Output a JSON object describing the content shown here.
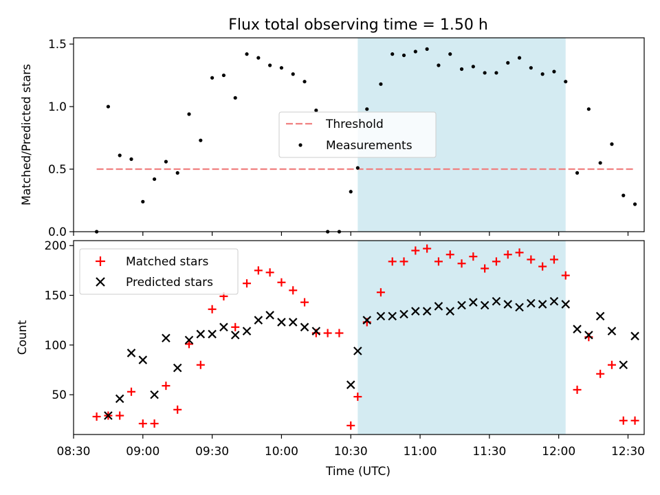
{
  "chart_data": [
    {
      "type": "scatter",
      "title": "Flux total observing time = 1.50 h",
      "ylabel": "Matched/Predicted stars",
      "ylim": [
        0,
        1.55
      ],
      "yticks": [
        0.0,
        0.5,
        1.0,
        1.5
      ],
      "ytick_labels": [
        "0.0",
        "0.5",
        "1.0",
        "1.5"
      ],
      "threshold_value": 0.5,
      "threshold_x_range": [
        "08:40",
        "12:33"
      ],
      "highlight_x_range": [
        "10:33",
        "12:03"
      ],
      "highlight_color": "#d4ebf2",
      "legend_placement": "center",
      "legend": [
        {
          "label": "Threshold",
          "marker": "dashed-line",
          "color": "#f08080"
        },
        {
          "label": "Measurements",
          "marker": "dot",
          "color": "#000000"
        }
      ],
      "series": [
        {
          "name": "Measurements",
          "color": "#000000",
          "x": [
            "08:40",
            "08:45",
            "08:50",
            "08:55",
            "09:00",
            "09:05",
            "09:10",
            "09:15",
            "09:20",
            "09:25",
            "09:30",
            "09:35",
            "09:40",
            "09:45",
            "09:50",
            "09:55",
            "10:00",
            "10:05",
            "10:10",
            "10:15",
            "10:20",
            "10:25",
            "10:30",
            "10:33",
            "10:37",
            "10:43",
            "10:48",
            "10:53",
            "10:58",
            "11:03",
            "11:08",
            "11:13",
            "11:18",
            "11:23",
            "11:28",
            "11:33",
            "11:38",
            "11:43",
            "11:48",
            "11:53",
            "11:58",
            "12:03",
            "12:08",
            "12:13",
            "12:18",
            "12:23",
            "12:28",
            "12:33"
          ],
          "values": [
            0.0,
            1.0,
            0.61,
            0.58,
            0.24,
            0.42,
            0.56,
            0.47,
            0.94,
            0.73,
            1.23,
            1.25,
            1.07,
            1.42,
            1.39,
            1.33,
            1.31,
            1.26,
            1.2,
            0.97,
            0.0,
            0.0,
            0.32,
            0.51,
            0.98,
            1.18,
            1.42,
            1.41,
            1.44,
            1.46,
            1.33,
            1.42,
            1.3,
            1.32,
            1.27,
            1.27,
            1.35,
            1.39,
            1.31,
            1.26,
            1.28,
            1.2,
            0.47,
            0.98,
            0.55,
            0.7,
            0.29,
            0.22
          ]
        }
      ]
    },
    {
      "type": "scatter",
      "xlabel": "Time (UTC)",
      "ylabel": "Count",
      "ylim": [
        10,
        205
      ],
      "yticks": [
        50,
        100,
        150,
        200
      ],
      "ytick_labels": [
        "50",
        "100",
        "150",
        "200"
      ],
      "xticks": [
        "08:30",
        "09:00",
        "09:30",
        "10:00",
        "10:30",
        "11:00",
        "11:30",
        "12:00",
        "12:30"
      ],
      "xlim": [
        "08:30",
        "12:37"
      ],
      "highlight_x_range": [
        "10:33",
        "12:03"
      ],
      "legend_placement": "upper left",
      "legend": [
        {
          "label": "Matched stars",
          "marker": "plus",
          "color": "#ff0000"
        },
        {
          "label": "Predicted stars",
          "marker": "x",
          "color": "#000000"
        }
      ],
      "series": [
        {
          "name": "Matched stars",
          "marker": "plus",
          "color": "#ff0000",
          "x": [
            "08:40",
            "08:45",
            "08:50",
            "08:55",
            "09:00",
            "09:05",
            "09:10",
            "09:15",
            "09:20",
            "09:25",
            "09:30",
            "09:35",
            "09:40",
            "09:45",
            "09:50",
            "09:55",
            "10:00",
            "10:05",
            "10:10",
            "10:15",
            "10:20",
            "10:25",
            "10:30",
            "10:33",
            "10:37",
            "10:43",
            "10:48",
            "10:53",
            "10:58",
            "11:03",
            "11:08",
            "11:13",
            "11:18",
            "11:23",
            "11:28",
            "11:33",
            "11:38",
            "11:43",
            "11:48",
            "11:53",
            "11:58",
            "12:03",
            "12:08",
            "12:13",
            "12:18",
            "12:23",
            "12:28",
            "12:33"
          ],
          "values": [
            28,
            29,
            29,
            53,
            21,
            21,
            59,
            35,
            101,
            80,
            136,
            149,
            118,
            162,
            175,
            173,
            163,
            155,
            143,
            112,
            112,
            112,
            19,
            48,
            123,
            153,
            184,
            184,
            195,
            197,
            184,
            191,
            182,
            189,
            177,
            184,
            191,
            193,
            186,
            179,
            186,
            170,
            55,
            108,
            71,
            80,
            24,
            24
          ]
        },
        {
          "name": "Predicted stars",
          "marker": "x",
          "color": "#000000",
          "x": [
            "08:45",
            "08:50",
            "08:55",
            "09:00",
            "09:05",
            "09:10",
            "09:15",
            "09:20",
            "09:25",
            "09:30",
            "09:35",
            "09:40",
            "09:45",
            "09:50",
            "09:55",
            "10:00",
            "10:05",
            "10:10",
            "10:15",
            "10:30",
            "10:33",
            "10:37",
            "10:43",
            "10:48",
            "10:53",
            "10:58",
            "11:03",
            "11:08",
            "11:13",
            "11:18",
            "11:23",
            "11:28",
            "11:33",
            "11:38",
            "11:43",
            "11:48",
            "11:53",
            "11:58",
            "12:03",
            "12:08",
            "12:13",
            "12:18",
            "12:23",
            "12:28",
            "12:33"
          ],
          "values": [
            29,
            46,
            92,
            85,
            50,
            107,
            77,
            105,
            111,
            111,
            118,
            110,
            114,
            125,
            130,
            123,
            123,
            118,
            114,
            60,
            94,
            125,
            129,
            129,
            131,
            134,
            134,
            139,
            134,
            140,
            143,
            140,
            144,
            141,
            138,
            142,
            141,
            144,
            141,
            116,
            110,
            129,
            114,
            80,
            109
          ]
        }
      ]
    }
  ]
}
